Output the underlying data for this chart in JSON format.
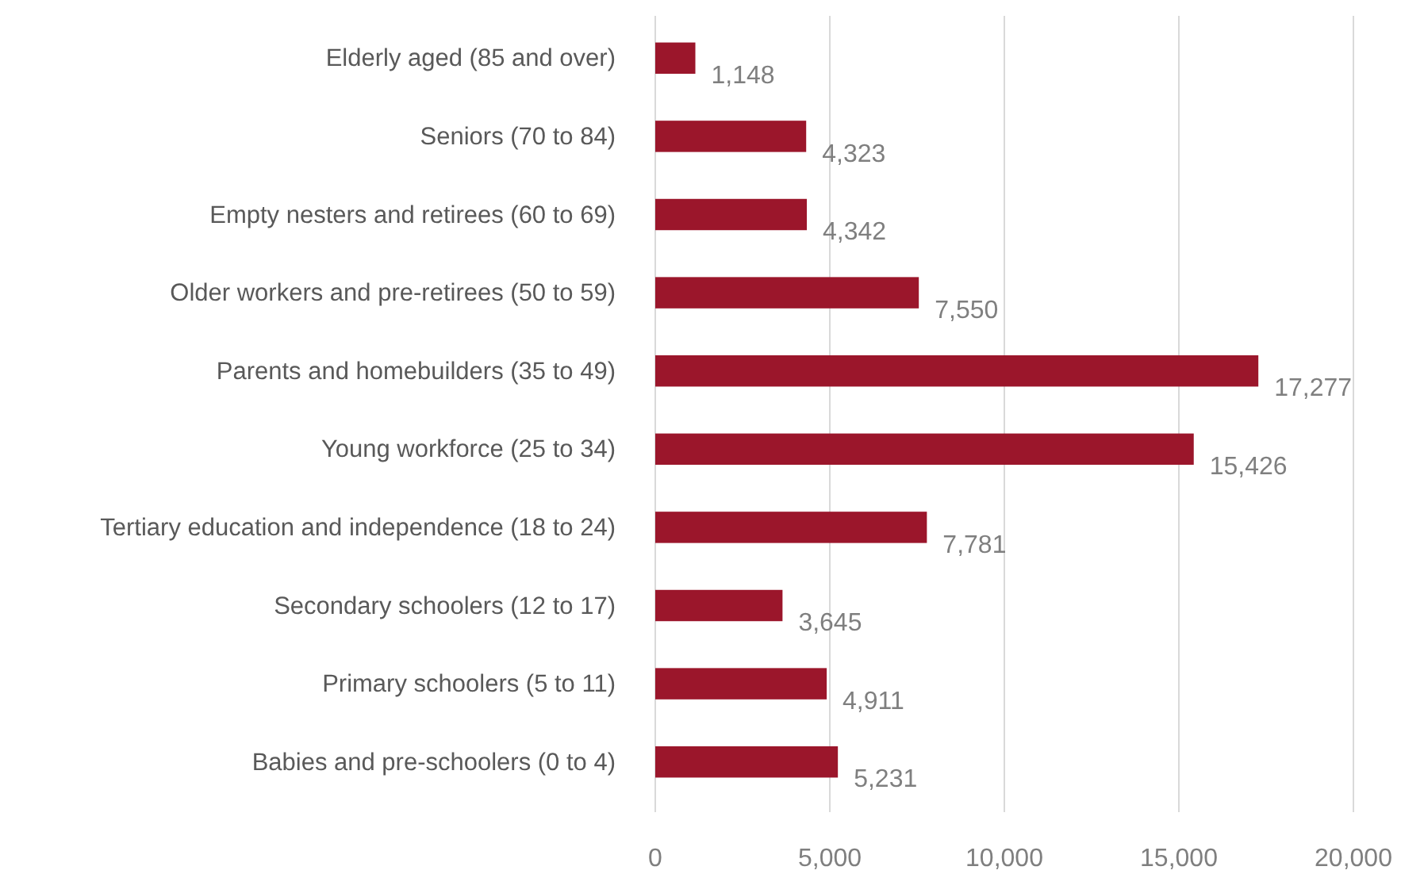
{
  "chart_data": {
    "type": "bar",
    "orientation": "horizontal",
    "categories": [
      "Elderly aged (85 and over)",
      "Seniors (70 to 84)",
      "Empty nesters and retirees (60 to 69)",
      "Older workers and pre-retirees (50 to 59)",
      "Parents and homebuilders (35 to 49)",
      "Young workforce (25 to 34)",
      "Tertiary education and independence (18 to 24)",
      "Secondary schoolers (12 to 17)",
      "Primary schoolers (5 to 11)",
      "Babies and pre-schoolers (0 to 4)"
    ],
    "values": [
      1148,
      4323,
      4342,
      7550,
      17277,
      15426,
      7781,
      3645,
      4911,
      5231
    ],
    "color": "#9b162b",
    "xlim": [
      0,
      20000
    ],
    "xticks": [
      {
        "value": 0,
        "label": "0"
      },
      {
        "value": 5000,
        "label": "5,000"
      },
      {
        "value": 10000,
        "label": "10,000"
      },
      {
        "value": 15000,
        "label": "15,000"
      },
      {
        "value": 20000,
        "label": "20,000"
      }
    ],
    "value_labels": [
      "1,148",
      "4,323",
      "4,342",
      "7,550",
      "17,277",
      "15,426",
      "7,781",
      "3,645",
      "4,911",
      "5,231"
    ],
    "grid": "x"
  }
}
